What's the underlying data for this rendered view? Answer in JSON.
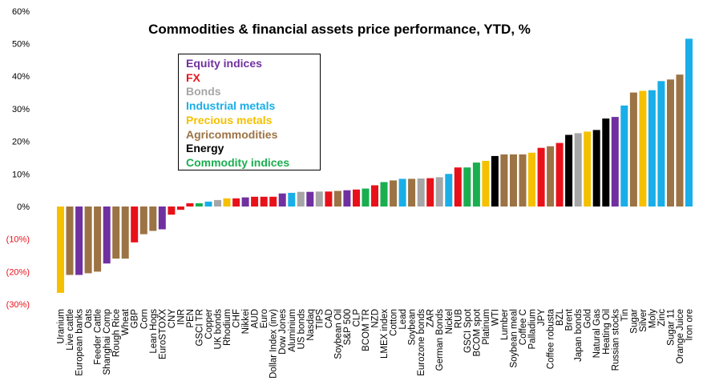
{
  "chart_data": {
    "type": "bar",
    "title": "Commodities & financial assets price performance, YTD, %",
    "ylim": [
      -30,
      60
    ],
    "yticks": [
      {
        "value": 60,
        "label": "60%"
      },
      {
        "value": 50,
        "label": "50%"
      },
      {
        "value": 40,
        "label": "40%"
      },
      {
        "value": 30,
        "label": "30%"
      },
      {
        "value": 20,
        "label": "20%"
      },
      {
        "value": 10,
        "label": "10%"
      },
      {
        "value": 0,
        "label": "0%"
      },
      {
        "value": -10,
        "label": "(10%)"
      },
      {
        "value": -20,
        "label": "(20%)"
      },
      {
        "value": -30,
        "label": "(30%)"
      }
    ],
    "grid": false,
    "legend_position": "top-left",
    "legend": [
      {
        "key": "equity",
        "label": "Equity indices",
        "color": "#7030A0"
      },
      {
        "key": "fx",
        "label": "FX",
        "color": "#E8111A"
      },
      {
        "key": "bonds",
        "label": "Bonds",
        "color": "#A6A6A6"
      },
      {
        "key": "industrial",
        "label": "Industrial metals",
        "color": "#19AEE8"
      },
      {
        "key": "precious",
        "label": "Precious metals",
        "color": "#F5C000"
      },
      {
        "key": "agri",
        "label": "Agricommodities",
        "color": "#9C7344"
      },
      {
        "key": "energy",
        "label": "Energy",
        "color": "#000000"
      },
      {
        "key": "commodity",
        "label": "Commodity indices",
        "color": "#1AAE4F"
      }
    ],
    "bars": [
      {
        "label": "Uranium",
        "value": -26.5,
        "group": "precious"
      },
      {
        "label": "Live cattle",
        "value": -21,
        "group": "agri"
      },
      {
        "label": "European banks",
        "value": -21,
        "group": "equity"
      },
      {
        "label": "Oats",
        "value": -20.5,
        "group": "agri"
      },
      {
        "label": "Feeder Cattle",
        "value": -20,
        "group": "agri"
      },
      {
        "label": "Shanghai Comp",
        "value": -17.5,
        "group": "equity"
      },
      {
        "label": "Rough Rice",
        "value": -16,
        "group": "agri"
      },
      {
        "label": "Wheat",
        "value": -16,
        "group": "agri"
      },
      {
        "label": "GBP",
        "value": -11,
        "group": "fx"
      },
      {
        "label": "Corn",
        "value": -8.5,
        "group": "agri"
      },
      {
        "label": "Lean Hogs",
        "value": -7.5,
        "group": "agri"
      },
      {
        "label": "EuroSTOXX",
        "value": -7,
        "group": "equity"
      },
      {
        "label": "CNY",
        "value": -2.5,
        "group": "fx"
      },
      {
        "label": "INR",
        "value": -1,
        "group": "fx"
      },
      {
        "label": "PEN",
        "value": 1,
        "group": "fx"
      },
      {
        "label": "GSCI TR",
        "value": 1,
        "group": "commodity"
      },
      {
        "label": "Copper",
        "value": 1.5,
        "group": "industrial"
      },
      {
        "label": "UK bonds",
        "value": 2,
        "group": "bonds"
      },
      {
        "label": "Rhodium",
        "value": 2.5,
        "group": "precious"
      },
      {
        "label": "CHF",
        "value": 2.5,
        "group": "fx"
      },
      {
        "label": "Nikkei",
        "value": 2.8,
        "group": "equity"
      },
      {
        "label": "AUD",
        "value": 3,
        "group": "fx"
      },
      {
        "label": "Euro",
        "value": 3,
        "group": "fx"
      },
      {
        "label": "Dollar Index (inv)",
        "value": 3,
        "group": "fx"
      },
      {
        "label": "Dow Jones",
        "value": 4,
        "group": "equity"
      },
      {
        "label": "Aluminium",
        "value": 4.2,
        "group": "industrial"
      },
      {
        "label": "US bonds",
        "value": 4.5,
        "group": "bonds"
      },
      {
        "label": "Nasdaq",
        "value": 4.5,
        "group": "equity"
      },
      {
        "label": "TIPS",
        "value": 4.6,
        "group": "bonds"
      },
      {
        "label": "CAD",
        "value": 4.6,
        "group": "fx"
      },
      {
        "label": "Soybean Oil",
        "value": 4.8,
        "group": "agri"
      },
      {
        "label": "S&P 500",
        "value": 5,
        "group": "equity"
      },
      {
        "label": "CLP",
        "value": 5.2,
        "group": "fx"
      },
      {
        "label": "BCOM TR",
        "value": 5.5,
        "group": "commodity"
      },
      {
        "label": "NZD",
        "value": 6.5,
        "group": "fx"
      },
      {
        "label": "LMEX index",
        "value": 7.5,
        "group": "commodity"
      },
      {
        "label": "Cotton",
        "value": 8,
        "group": "agri"
      },
      {
        "label": "Lead",
        "value": 8.5,
        "group": "industrial"
      },
      {
        "label": "Soybean",
        "value": 8.5,
        "group": "agri"
      },
      {
        "label": "Eurozone bonds",
        "value": 8.6,
        "group": "bonds"
      },
      {
        "label": "ZAR",
        "value": 8.7,
        "group": "fx"
      },
      {
        "label": "German Bonds",
        "value": 9,
        "group": "bonds"
      },
      {
        "label": "Nickel",
        "value": 10,
        "group": "industrial"
      },
      {
        "label": "RUB",
        "value": 12,
        "group": "fx"
      },
      {
        "label": "GSCI Spot",
        "value": 12,
        "group": "commodity"
      },
      {
        "label": "BCOM spot",
        "value": 13.5,
        "group": "commodity"
      },
      {
        "label": "Platinum",
        "value": 14,
        "group": "precious"
      },
      {
        "label": "WTI",
        "value": 15.5,
        "group": "energy"
      },
      {
        "label": "Lumber",
        "value": 16,
        "group": "agri"
      },
      {
        "label": "Soybean meal",
        "value": 16,
        "group": "agri"
      },
      {
        "label": "Coffee C",
        "value": 16,
        "group": "agri"
      },
      {
        "label": "Palladium",
        "value": 16.5,
        "group": "precious"
      },
      {
        "label": "JPY",
        "value": 18,
        "group": "fx"
      },
      {
        "label": "Coffee robusta",
        "value": 18.5,
        "group": "agri"
      },
      {
        "label": "BZL",
        "value": 19.5,
        "group": "fx"
      },
      {
        "label": "Brent",
        "value": 22,
        "group": "energy"
      },
      {
        "label": "Japan bonds",
        "value": 22.5,
        "group": "bonds"
      },
      {
        "label": "Gold",
        "value": 23,
        "group": "precious"
      },
      {
        "label": "Natural Gas",
        "value": 23.5,
        "group": "energy"
      },
      {
        "label": "Heating Oil",
        "value": 27,
        "group": "energy"
      },
      {
        "label": "Russian stocks",
        "value": 27.5,
        "group": "equity"
      },
      {
        "label": "Tin",
        "value": 31,
        "group": "industrial"
      },
      {
        "label": "Sugar",
        "value": 35,
        "group": "agri"
      },
      {
        "label": "Silver",
        "value": 35.5,
        "group": "precious"
      },
      {
        "label": "Moly",
        "value": 35.7,
        "group": "industrial"
      },
      {
        "label": "Zinc",
        "value": 38.5,
        "group": "industrial"
      },
      {
        "label": "Sugar 11",
        "value": 39,
        "group": "agri"
      },
      {
        "label": "Orange Juice",
        "value": 40.5,
        "group": "agri"
      },
      {
        "label": "Iron ore",
        "value": 51.5,
        "group": "industrial"
      }
    ]
  }
}
